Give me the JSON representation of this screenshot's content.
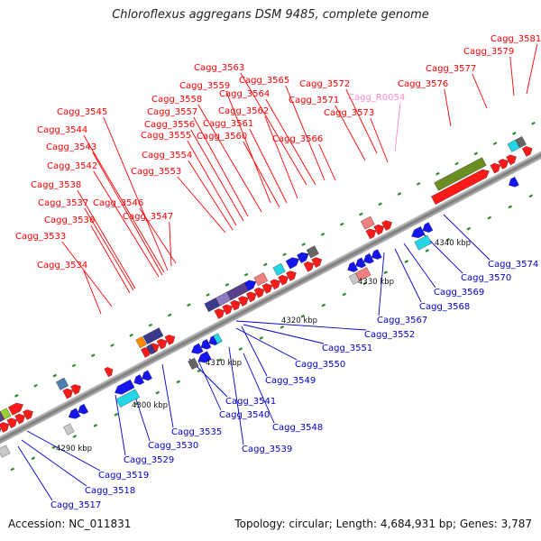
{
  "title": "Chloroflexus aggregans DSM 9485, complete genome",
  "footer": {
    "accession": "Accession: NC_011831",
    "topology": "Topology: circular; Length: 4,684,931 bp; Genes: 3,787"
  },
  "ticks": [
    "4290 kbp",
    "4300 kbp",
    "4310 kbp",
    "4320 kbp",
    "4330 kbp",
    "4340 kbp"
  ],
  "labels_top": [
    "Cagg_3581",
    "Cagg_3579",
    "Cagg_3577",
    "Cagg_3576",
    "Cagg_3563",
    "Cagg_3565",
    "Cagg_3572",
    "Cagg_R0054",
    "Cagg_3559",
    "Cagg_3564",
    "Cagg_3571",
    "Cagg_3558",
    "Cagg_3562",
    "Cagg_3573",
    "Cagg_3545",
    "Cagg_3557",
    "Cagg_3561",
    "Cagg_3544",
    "Cagg_3556",
    "Cagg_3560",
    "Cagg_3566",
    "Cagg_3555",
    "Cagg_3543",
    "Cagg_3554",
    "Cagg_3542",
    "Cagg_3553",
    "Cagg_3538",
    "Cagg_3537",
    "Cagg_3546",
    "Cagg_3536",
    "Cagg_3547",
    "Cagg_3533",
    "Cagg_3534"
  ],
  "labels_bottom": [
    "Cagg_3574",
    "Cagg_3570",
    "Cagg_3569",
    "Cagg_3568",
    "Cagg_3567",
    "Cagg_3552",
    "Cagg_3551",
    "Cagg_3550",
    "Cagg_3549",
    "Cagg_3541",
    "Cagg_3540",
    "Cagg_3548",
    "Cagg_3535",
    "Cagg_3539",
    "Cagg_3530",
    "Cagg_3529",
    "Cagg_3519",
    "Cagg_3518",
    "Cagg_3517"
  ],
  "colors": {
    "forward_gene": "#ff0000",
    "reverse_gene": "#0000ff",
    "forward_label": "#ff0000",
    "reverse_label": "#0000cc",
    "rna_label": "#ff88cc",
    "backbone": "#888888",
    "tick_mark": "#2e8b2e"
  }
}
